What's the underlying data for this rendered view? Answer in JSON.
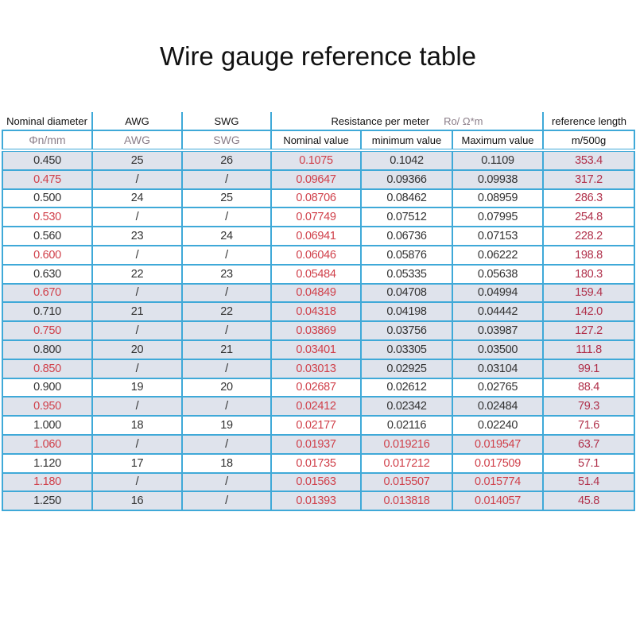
{
  "title": "Wire gauge reference table",
  "colors": {
    "border": "#3fa9d8",
    "shaded_row": "#dfe3ec",
    "red_text": "#d0404a",
    "ref_length_text": "#b0304a"
  },
  "header": {
    "row1": {
      "diameter": "Nominal diameter",
      "awg": "AWG",
      "swg": "SWG",
      "resistance": "Resistance per meter",
      "resistance_unit": "Ro/ Ω*m",
      "ref_length": "reference length"
    },
    "row2": {
      "diameter": "Φn/mm",
      "awg": "AWG",
      "swg": "SWG",
      "nominal": "Nominal value",
      "minimum": "minimum value",
      "maximum": "Maximum value",
      "ref_length": "m/500g"
    }
  },
  "rows": [
    {
      "d": "0.450",
      "awg": "25",
      "swg": "26",
      "nom": "0.1075",
      "min": "0.1042",
      "max": "0.1109",
      "len": "353.4",
      "shaded": true
    },
    {
      "d": "0.475",
      "awg": "/",
      "swg": "/",
      "nom": "0.09647",
      "min": "0.09366",
      "max": "0.09938",
      "len": "317.2",
      "shaded": true
    },
    {
      "d": "0.500",
      "awg": "24",
      "swg": "25",
      "nom": "0.08706",
      "min": "0.08462",
      "max": "0.08959",
      "len": "286.3",
      "shaded": false
    },
    {
      "d": "0.530",
      "awg": "/",
      "swg": "/",
      "nom": "0.07749",
      "min": "0.07512",
      "max": "0.07995",
      "len": "254.8",
      "shaded": false
    },
    {
      "d": "0.560",
      "awg": "23",
      "swg": "24",
      "nom": "0.06941",
      "min": "0.06736",
      "max": "0.07153",
      "len": "228.2",
      "shaded": false
    },
    {
      "d": "0.600",
      "awg": "/",
      "swg": "/",
      "nom": "0.06046",
      "min": "0.05876",
      "max": "0.06222",
      "len": "198.8",
      "shaded": false
    },
    {
      "d": "0.630",
      "awg": "22",
      "swg": "23",
      "nom": "0.05484",
      "min": "0.05335",
      "max": "0.05638",
      "len": "180.3",
      "shaded": false
    },
    {
      "d": "0.670",
      "awg": "/",
      "swg": "/",
      "nom": "0.04849",
      "min": "0.04708",
      "max": "0.04994",
      "len": "159.4",
      "shaded": true
    },
    {
      "d": "0.710",
      "awg": "21",
      "swg": "22",
      "nom": "0.04318",
      "min": "0.04198",
      "max": "0.04442",
      "len": "142.0",
      "shaded": true
    },
    {
      "d": "0.750",
      "awg": "/",
      "swg": "/",
      "nom": "0.03869",
      "min": "0.03756",
      "max": "0.03987",
      "len": "127.2",
      "shaded": true
    },
    {
      "d": "0.800",
      "awg": "20",
      "swg": "21",
      "nom": "0.03401",
      "min": "0.03305",
      "max": "0.03500",
      "len": "111.8",
      "shaded": true
    },
    {
      "d": "0.850",
      "awg": "/",
      "swg": "/",
      "nom": "0.03013",
      "min": "0.02925",
      "max": "0.03104",
      "len": "99.1",
      "shaded": true
    },
    {
      "d": "0.900",
      "awg": "19",
      "swg": "20",
      "nom": "0.02687",
      "min": "0.02612",
      "max": "0.02765",
      "len": "88.4",
      "shaded": false
    },
    {
      "d": "0.950",
      "awg": "/",
      "swg": "/",
      "nom": "0.02412",
      "min": "0.02342",
      "max": "0.02484",
      "len": "79.3",
      "shaded": true
    },
    {
      "d": "1.000",
      "awg": "18",
      "swg": "19",
      "nom": "0.02177",
      "min": "0.02116",
      "max": "0.02240",
      "len": "71.6",
      "shaded": false
    },
    {
      "d": "1.060",
      "awg": "/",
      "swg": "/",
      "nom": "0.01937",
      "min": "0.019216",
      "max": "0.019547",
      "len": "63.7",
      "shaded": true,
      "red_minmax": true
    },
    {
      "d": "1.120",
      "awg": "17",
      "swg": "18",
      "nom": "0.01735",
      "min": "0.017212",
      "max": "0.017509",
      "len": "57.1",
      "shaded": false,
      "red_minmax": true
    },
    {
      "d": "1.180",
      "awg": "/",
      "swg": "/",
      "nom": "0.01563",
      "min": "0.015507",
      "max": "0.015774",
      "len": "51.4",
      "shaded": true,
      "red_minmax": true
    },
    {
      "d": "1.250",
      "awg": "16",
      "swg": "/",
      "nom": "0.01393",
      "min": "0.013818",
      "max": "0.014057",
      "len": "45.8",
      "shaded": true,
      "red_minmax": true
    }
  ]
}
